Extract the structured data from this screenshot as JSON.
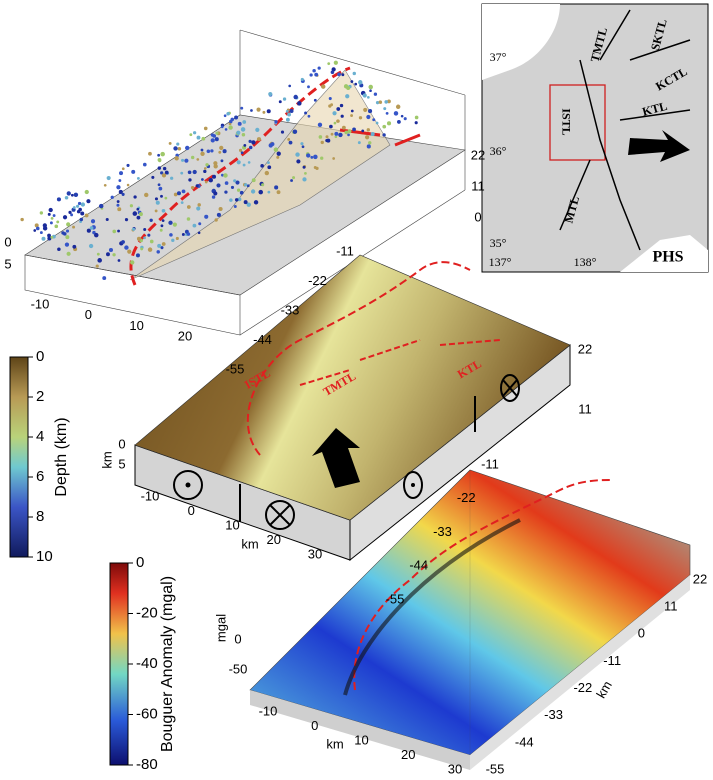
{
  "inset_map": {
    "lat_labels": [
      "37°",
      "36°",
      "35°"
    ],
    "lon_labels": [
      "137°",
      "138°"
    ],
    "faults": [
      "ISTL",
      "TMTL",
      "SKTL",
      "KCTL",
      "KTL",
      "MTL"
    ],
    "plate": "PHS"
  },
  "seismicity_block": {
    "x_ticks": [
      -10,
      0,
      10,
      20
    ],
    "y_ticks": [
      22,
      11,
      0
    ],
    "z_ticks": [
      0,
      5
    ]
  },
  "gravity_block": {
    "x_ticks": [
      -10,
      0,
      10,
      20,
      30
    ],
    "x_label": "km",
    "y_ticks_left": [
      -11,
      -22,
      -33,
      -44,
      -55
    ],
    "y_ticks_right": [
      22,
      11
    ],
    "z_ticks": [
      0,
      5
    ],
    "z_label": "km",
    "fault_labels": [
      "ISTL",
      "TMTL",
      "KTL"
    ]
  },
  "bouguer_block": {
    "x_ticks": [
      -10,
      0,
      10,
      20,
      30
    ],
    "x_label": "km",
    "y_ticks_left": [
      -11,
      -22,
      -33,
      -44,
      -55
    ],
    "y_ticks_right": [
      22,
      11,
      0,
      -11,
      -22,
      -33,
      -44,
      -55
    ],
    "y_label": "km",
    "z_ticks": [
      0,
      -50
    ],
    "z_label": "mgal"
  },
  "colorbars": [
    {
      "label": "Depth (km)",
      "lim": [
        0,
        10
      ],
      "ticks": [
        0,
        2,
        4,
        6,
        8,
        10
      ]
    },
    {
      "label": "Bouguer Anomaly (mgal)",
      "lim": [
        0,
        -80
      ],
      "ticks": [
        0,
        -20,
        -40,
        -60,
        -80
      ]
    }
  ]
}
